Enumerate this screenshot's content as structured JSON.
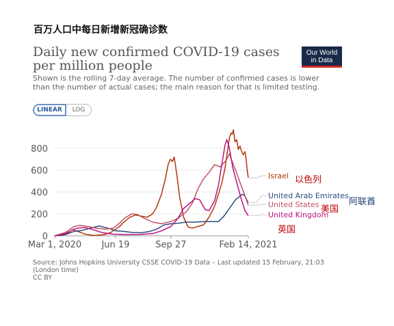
{
  "header": {
    "title_zh": "百万人口中每日新增新冠确诊数"
  },
  "logo": {
    "line1": "Our World",
    "line2": "in Data"
  },
  "controls": {
    "linear_label": "LINEAR",
    "log_label": "LOG",
    "selected": "linear"
  },
  "source": {
    "line1": "Source: Johns Hopkins University CSSE COVID-19 Data – Last updated 15 February, 21:03",
    "line2": "(London time)",
    "line3": "CC BY"
  },
  "annotations": {
    "israel_zh": "以色列",
    "uae_zh": "阿联酋",
    "us_zh": "美国",
    "uk_zh": "英国"
  },
  "colors": {
    "israel": "#b13507",
    "uae": "#2b4a7d",
    "us": "#c15065",
    "uk": "#bd0e7e",
    "annotation_red": "#c00000",
    "annotation_blue": "#1f3f7a",
    "grid": "#dddddd"
  },
  "chart_data": {
    "type": "line",
    "title": "Daily new confirmed COVID-19 cases per million people",
    "subtitle": "Shown is the rolling 7-day average. The number of confirmed cases is lower than the number of actual cases; the main reason for that is limited testing.",
    "xlabel": "",
    "ylabel": "",
    "x_ticks": [
      "Mar 1, 2020",
      "Jun 19",
      "Sep 27",
      "Feb 14, 2021"
    ],
    "y_ticks": [
      0,
      200,
      400,
      600,
      800
    ],
    "ylim": [
      0,
      1000
    ],
    "xlim": [
      "2020-03-01",
      "2021-02-14"
    ],
    "grid": "horizontal",
    "legend": "right, inline labels at line ends",
    "series": [
      {
        "name": "Israel",
        "color_key": "israel",
        "points": [
          [
            "2020-03-01",
            0
          ],
          [
            "2020-03-15",
            5
          ],
          [
            "2020-03-25",
            25
          ],
          [
            "2020-04-02",
            55
          ],
          [
            "2020-04-12",
            40
          ],
          [
            "2020-04-25",
            15
          ],
          [
            "2020-05-10",
            3
          ],
          [
            "2020-05-30",
            10
          ],
          [
            "2020-06-10",
            30
          ],
          [
            "2020-06-25",
            80
          ],
          [
            "2020-07-05",
            130
          ],
          [
            "2020-07-15",
            170
          ],
          [
            "2020-07-25",
            190
          ],
          [
            "2020-08-05",
            180
          ],
          [
            "2020-08-15",
            170
          ],
          [
            "2020-08-25",
            200
          ],
          [
            "2020-09-01",
            260
          ],
          [
            "2020-09-10",
            380
          ],
          [
            "2020-09-17",
            520
          ],
          [
            "2020-09-22",
            650
          ],
          [
            "2020-09-26",
            700
          ],
          [
            "2020-09-30",
            680
          ],
          [
            "2020-10-03",
            720
          ],
          [
            "2020-10-08",
            550
          ],
          [
            "2020-10-13",
            350
          ],
          [
            "2020-10-20",
            170
          ],
          [
            "2020-10-28",
            80
          ],
          [
            "2020-11-05",
            70
          ],
          [
            "2020-11-15",
            85
          ],
          [
            "2020-11-25",
            100
          ],
          [
            "2020-12-05",
            170
          ],
          [
            "2020-12-15",
            270
          ],
          [
            "2020-12-22",
            380
          ],
          [
            "2020-12-28",
            480
          ],
          [
            "2021-01-03",
            620
          ],
          [
            "2021-01-08",
            800
          ],
          [
            "2021-01-11",
            900
          ],
          [
            "2021-01-14",
            940
          ],
          [
            "2021-01-16",
            930
          ],
          [
            "2021-01-18",
            970
          ],
          [
            "2021-01-21",
            860
          ],
          [
            "2021-01-24",
            880
          ],
          [
            "2021-01-27",
            790
          ],
          [
            "2021-01-30",
            820
          ],
          [
            "2021-02-02",
            770
          ],
          [
            "2021-02-05",
            740
          ],
          [
            "2021-02-08",
            770
          ],
          [
            "2021-02-10",
            700
          ],
          [
            "2021-02-12",
            600
          ],
          [
            "2021-02-14",
            530
          ]
        ]
      },
      {
        "name": "United Arab Emirates",
        "color_key": "uae",
        "points": [
          [
            "2020-03-01",
            0
          ],
          [
            "2020-03-20",
            10
          ],
          [
            "2020-04-05",
            40
          ],
          [
            "2020-04-20",
            50
          ],
          [
            "2020-05-05",
            70
          ],
          [
            "2020-05-20",
            90
          ],
          [
            "2020-06-05",
            70
          ],
          [
            "2020-06-20",
            45
          ],
          [
            "2020-07-05",
            40
          ],
          [
            "2020-07-20",
            30
          ],
          [
            "2020-08-05",
            28
          ],
          [
            "2020-08-20",
            40
          ],
          [
            "2020-09-01",
            60
          ],
          [
            "2020-09-15",
            100
          ],
          [
            "2020-09-27",
            110
          ],
          [
            "2020-10-10",
            115
          ],
          [
            "2020-10-25",
            125
          ],
          [
            "2020-11-10",
            125
          ],
          [
            "2020-11-25",
            130
          ],
          [
            "2020-12-10",
            130
          ],
          [
            "2020-12-22",
            130
          ],
          [
            "2021-01-01",
            180
          ],
          [
            "2021-01-08",
            230
          ],
          [
            "2021-01-15",
            280
          ],
          [
            "2021-01-22",
            330
          ],
          [
            "2021-01-29",
            360
          ],
          [
            "2021-02-03",
            380
          ],
          [
            "2021-02-07",
            370
          ],
          [
            "2021-02-11",
            330
          ],
          [
            "2021-02-14",
            305
          ]
        ]
      },
      {
        "name": "United States",
        "color_key": "us",
        "points": [
          [
            "2020-03-01",
            0
          ],
          [
            "2020-03-20",
            30
          ],
          [
            "2020-04-05",
            85
          ],
          [
            "2020-04-15",
            95
          ],
          [
            "2020-04-30",
            85
          ],
          [
            "2020-05-15",
            70
          ],
          [
            "2020-06-01",
            60
          ],
          [
            "2020-06-15",
            70
          ],
          [
            "2020-06-25",
            110
          ],
          [
            "2020-07-05",
            160
          ],
          [
            "2020-07-18",
            200
          ],
          [
            "2020-07-28",
            195
          ],
          [
            "2020-08-10",
            160
          ],
          [
            "2020-08-25",
            125
          ],
          [
            "2020-09-10",
            110
          ],
          [
            "2020-09-27",
            130
          ],
          [
            "2020-10-10",
            160
          ],
          [
            "2020-10-25",
            220
          ],
          [
            "2020-11-05",
            300
          ],
          [
            "2020-11-15",
            430
          ],
          [
            "2020-11-25",
            520
          ],
          [
            "2020-12-05",
            580
          ],
          [
            "2020-12-15",
            650
          ],
          [
            "2020-12-25",
            630
          ],
          [
            "2021-01-05",
            690
          ],
          [
            "2021-01-11",
            750
          ],
          [
            "2021-01-18",
            650
          ],
          [
            "2021-01-25",
            560
          ],
          [
            "2021-02-01",
            460
          ],
          [
            "2021-02-07",
            380
          ],
          [
            "2021-02-14",
            280
          ]
        ]
      },
      {
        "name": "United Kingdom",
        "color_key": "uk",
        "points": [
          [
            "2020-03-01",
            0
          ],
          [
            "2020-03-20",
            20
          ],
          [
            "2020-04-05",
            60
          ],
          [
            "2020-04-12",
            70
          ],
          [
            "2020-04-25",
            75
          ],
          [
            "2020-05-10",
            55
          ],
          [
            "2020-05-25",
            30
          ],
          [
            "2020-06-15",
            15
          ],
          [
            "2020-07-05",
            10
          ],
          [
            "2020-08-01",
            12
          ],
          [
            "2020-08-25",
            20
          ],
          [
            "2020-09-10",
            45
          ],
          [
            "2020-09-27",
            85
          ],
          [
            "2020-10-10",
            160
          ],
          [
            "2020-10-20",
            250
          ],
          [
            "2020-11-01",
            300
          ],
          [
            "2020-11-10",
            340
          ],
          [
            "2020-11-18",
            330
          ],
          [
            "2020-11-28",
            240
          ],
          [
            "2020-12-05",
            230
          ],
          [
            "2020-12-15",
            320
          ],
          [
            "2020-12-22",
            460
          ],
          [
            "2020-12-29",
            680
          ],
          [
            "2021-01-03",
            830
          ],
          [
            "2021-01-06",
            880
          ],
          [
            "2021-01-10",
            820
          ],
          [
            "2021-01-17",
            620
          ],
          [
            "2021-01-25",
            470
          ],
          [
            "2021-02-01",
            340
          ],
          [
            "2021-02-08",
            230
          ],
          [
            "2021-02-14",
            185
          ]
        ]
      }
    ]
  }
}
